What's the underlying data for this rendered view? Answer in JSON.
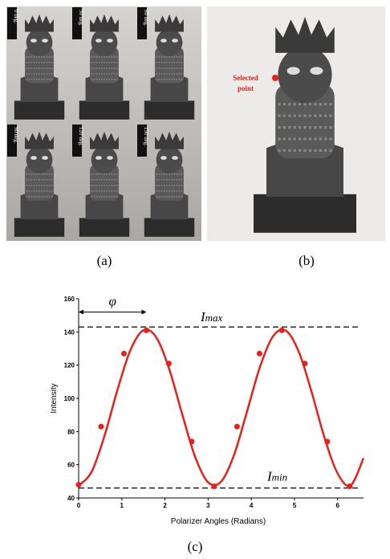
{
  "panel_a": {
    "labels": [
      "0 deg.",
      "30 deg.",
      "60 deg.",
      "90 deg.",
      "120 deg.",
      "150 deg."
    ]
  },
  "panel_b": {
    "label_lines": [
      "Selected",
      "point"
    ]
  },
  "captions": [
    "(a)",
    "(b)",
    "(c)"
  ],
  "chart_data": {
    "type": "line",
    "x_label": "Polarizer Angles (Radians)",
    "y_label": "Intensity",
    "xlim": [
      0,
      6.6
    ],
    "ylim": [
      40,
      160
    ],
    "xticks": [
      0,
      1,
      2,
      3,
      4,
      5,
      6
    ],
    "yticks": [
      40,
      60,
      80,
      100,
      120,
      140,
      160
    ],
    "series": [
      {
        "color": "#e8201a",
        "smooth": true,
        "x": [
          0,
          0.3,
          0.6,
          0.9,
          1.2,
          1.5,
          1.8,
          2.1,
          2.4,
          2.7,
          3.0,
          3.3,
          3.6,
          3.9,
          4.2,
          4.5,
          4.8,
          5.1,
          5.4,
          5.7,
          6.0,
          6.3,
          6.6
        ],
        "values": [
          47.5,
          55.7,
          77.5,
          105.2,
          129.1,
          141,
          136.7,
          117.5,
          90.4,
          64.7,
          49.4,
          49.8,
          65.9,
          92,
          118.9,
          137.3,
          140.8,
          128.1,
          103.6,
          76,
          54.8,
          47.5,
          64
        ]
      },
      {
        "color": "#e8201a",
        "markers": true,
        "x": [
          0,
          0.52,
          1.05,
          1.57,
          2.09,
          2.62,
          3.14,
          3.67,
          4.19,
          4.71,
          5.24,
          5.76,
          6.28
        ],
        "values": [
          48,
          83,
          127,
          141,
          121,
          74,
          47,
          83,
          127,
          141,
          121,
          74,
          47
        ]
      }
    ],
    "reference_lines": [
      {
        "y": 143,
        "label": "I",
        "sub": "max"
      },
      {
        "y": 46,
        "label": "I",
        "sub": "min"
      }
    ],
    "phi_arrow": {
      "label": "φ",
      "x": [
        0,
        1.57
      ],
      "y": 152
    }
  }
}
